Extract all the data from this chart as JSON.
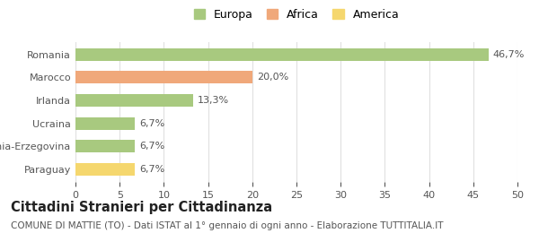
{
  "categories": [
    "Paraguay",
    "Bosnia-Erzegovina",
    "Ucraina",
    "Irlanda",
    "Marocco",
    "Romania"
  ],
  "values": [
    6.7,
    6.7,
    6.7,
    13.3,
    20.0,
    46.7
  ],
  "labels": [
    "6,7%",
    "6,7%",
    "6,7%",
    "13,3%",
    "20,0%",
    "46,7%"
  ],
  "bar_colors": [
    "#f5d76e",
    "#a8c97f",
    "#a8c97f",
    "#a8c97f",
    "#f0a87a",
    "#a8c97f"
  ],
  "legend_items": [
    {
      "label": "Europa",
      "color": "#a8c97f"
    },
    {
      "label": "Africa",
      "color": "#f0a87a"
    },
    {
      "label": "America",
      "color": "#f5d76e"
    }
  ],
  "xlim": [
    0,
    50
  ],
  "xticks": [
    0,
    5,
    10,
    15,
    20,
    25,
    30,
    35,
    40,
    45,
    50
  ],
  "title": "Cittadini Stranieri per Cittadinanza",
  "subtitle": "COMUNE DI MATTIE (TO) - Dati ISTAT al 1° gennaio di ogni anno - Elaborazione TUTTITALIA.IT",
  "background_color": "#ffffff",
  "grid_color": "#e0e0e0",
  "bar_height": 0.55,
  "label_fontsize": 8,
  "tick_fontsize": 8,
  "title_fontsize": 10.5,
  "subtitle_fontsize": 7.5
}
